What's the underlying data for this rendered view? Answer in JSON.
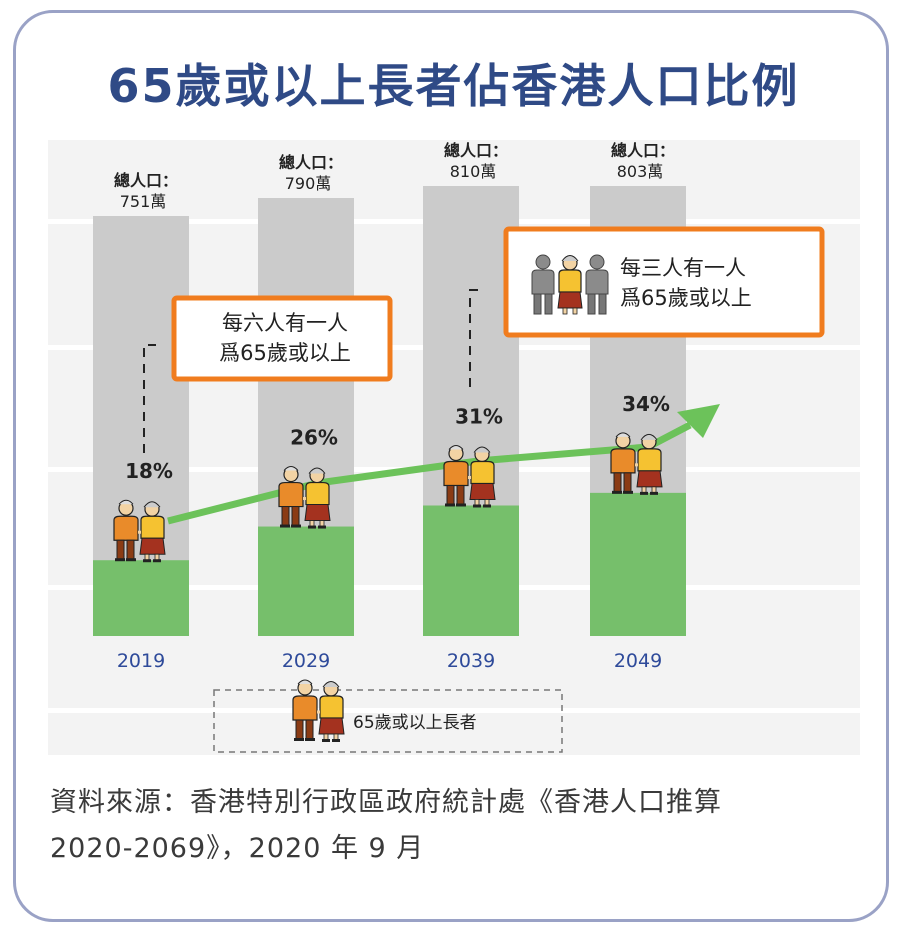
{
  "title": "65歲或以上長者佔香港人口比例",
  "chart_data": {
    "type": "bar",
    "categories": [
      "2019",
      "2029",
      "2039",
      "2049"
    ],
    "values": [
      18,
      26,
      31,
      34
    ],
    "value_labels": [
      "18%",
      "26%",
      "31%",
      "34%"
    ],
    "unit": "%",
    "total_population_label": "總人口：",
    "totals": [
      "751萬",
      "790萬",
      "810萬",
      "803萬"
    ],
    "callouts": [
      {
        "line1": "每六人有一人",
        "line2": "爲65歲或以上"
      },
      {
        "line1": "每三人有一人",
        "line2": "爲65歲或以上"
      }
    ],
    "legend": [
      "65歲或以上長者"
    ],
    "colors": {
      "elderly_bar": "#76bf6b",
      "total_bar": "#cbcbcb",
      "trend_arrow": "#6cc25a",
      "callout_border": "#f07c1e",
      "year_label": "#2e4a9a",
      "title": "#2f4a86"
    }
  },
  "source_line1": "資料來源：香港特別行政區政府統計處《香港人口推算",
  "source_line2": "2020-2069》，2020 年 9 月"
}
